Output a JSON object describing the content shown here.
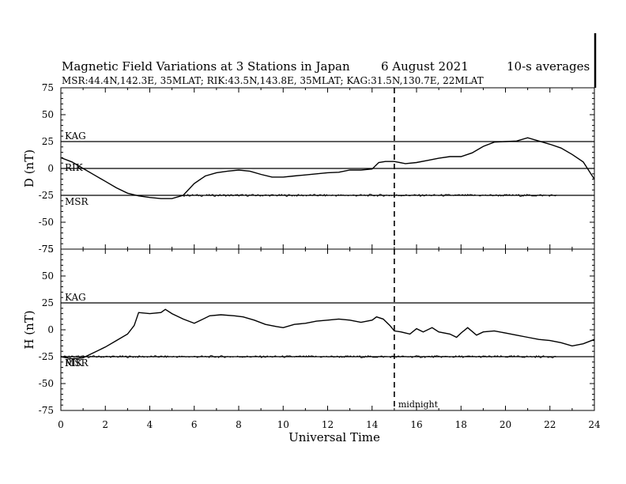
{
  "chart_data": {
    "type": "line",
    "title": "Magnetic Field Variations at 3 Stations in Japan",
    "date": "6   August  2021",
    "averaging": "10-s averages",
    "subtitle": "MSR:44.4N,142.3E, 35MLAT;  RIK:43.5N,143.8E, 35MLAT;  KAG:31.5N,130.7E, 22MLAT",
    "xlabel": "Universal Time",
    "xlim": [
      0,
      24
    ],
    "x_ticks": [
      "0",
      "2",
      "4",
      "6",
      "8",
      "10",
      "12",
      "14",
      "16",
      "18",
      "20",
      "22",
      "24"
    ],
    "y_ticks": [
      "75",
      "50",
      "25",
      "0",
      "-25",
      "-50",
      "-75"
    ],
    "ylim": [
      -75,
      75
    ],
    "midnight_marker": {
      "x": 15,
      "label": "midnight"
    },
    "panels": [
      {
        "ylabel": "D (nT)",
        "baselines": [
          {
            "station": "KAG",
            "offset": 25
          },
          {
            "station": "RIK",
            "offset": 0
          },
          {
            "station": "MSR",
            "offset": -25
          }
        ],
        "series": [
          {
            "name": "RIK",
            "x": [
              0,
              0.5,
              1,
              1.5,
              2,
              2.5,
              3,
              3.5,
              4,
              4.5,
              5,
              5.5,
              6,
              6.5,
              7,
              7.5,
              8,
              8.5,
              9,
              9.5,
              10,
              10.5,
              11,
              11.5,
              12,
              12.5,
              13,
              13.5,
              14,
              14.3,
              14.6,
              15,
              15.5,
              16,
              16.5,
              17,
              17.5,
              18,
              18.5,
              19,
              19.5,
              20,
              20.5,
              21,
              21.5,
              22,
              22.5,
              23,
              23.5,
              24
            ],
            "values": [
              10,
              6,
              0,
              -6,
              -12,
              -18,
              -23,
              -25.5,
              -27,
              -28,
              -28,
              -25,
              -14,
              -7,
              -4,
              -2.5,
              -1.5,
              -2.5,
              -5.5,
              -8,
              -8,
              -7,
              -6,
              -5,
              -4,
              -3.5,
              -1.5,
              -1.5,
              -0.5,
              5.5,
              6.5,
              6.5,
              4.5,
              5.5,
              7.5,
              9.5,
              11,
              11,
              14.5,
              20.5,
              24.5,
              25,
              25.5,
              28.5,
              25.5,
              22.5,
              19,
              13,
              6,
              -10
            ]
          },
          {
            "name": "MSR",
            "x": [
              5.5,
              22.3
            ],
            "values": [
              -25,
              -25
            ],
            "noise": 1
          }
        ]
      },
      {
        "ylabel": "H (nT)",
        "baselines": [
          {
            "station": "KAG",
            "offset": 25
          },
          {
            "station": "RIK",
            "offset": -25
          },
          {
            "station": "MSR",
            "offset": -25
          }
        ],
        "series": [
          {
            "name": "RIK",
            "x": [
              0,
              0.5,
              1,
              1.5,
              2,
              2.5,
              3,
              3.3,
              3.5,
              4,
              4.5,
              4.7,
              5,
              5.5,
              6,
              6.3,
              6.7,
              7.2,
              7.8,
              8.2,
              8.7,
              9.2,
              9.7,
              10,
              10.5,
              11,
              11.5,
              12,
              12.5,
              13,
              13.5,
              14,
              14.2,
              14.5,
              14.8,
              15,
              15.3,
              15.7,
              16,
              16.3,
              16.7,
              17,
              17.5,
              17.8,
              18,
              18.3,
              18.7,
              19,
              19.5,
              20,
              20.5,
              21,
              21.5,
              22,
              22.5,
              23,
              23.5,
              24
            ],
            "values": [
              -25,
              -27,
              -26,
              -21,
              -16,
              -10,
              -4,
              4,
              16,
              15,
              16,
              19,
              15,
              10,
              6,
              9,
              13,
              14,
              13,
              12,
              9,
              5,
              3,
              2,
              5,
              6,
              8,
              9,
              10,
              9,
              7,
              9,
              12,
              10,
              4,
              -1,
              -2,
              -4,
              1,
              -2,
              2,
              -2,
              -4,
              -7,
              -3,
              2,
              -5,
              -2,
              -1,
              -3,
              -5,
              -7,
              -9,
              -10,
              -12,
              -15,
              -13,
              -9
            ]
          },
          {
            "name": "MSR",
            "x": [
              0,
              22.3
            ],
            "values": [
              -25,
              -25
            ],
            "noise": 1
          }
        ]
      }
    ]
  }
}
